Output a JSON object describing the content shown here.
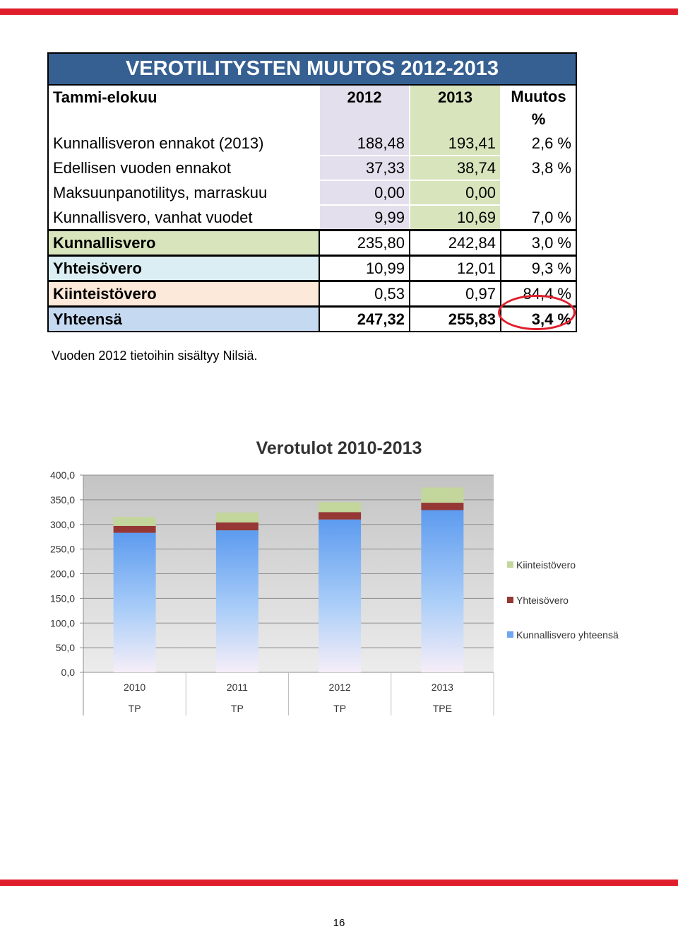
{
  "table": {
    "title": "VEROTILITYSTEN MUUTOS 2012-2013",
    "header": {
      "label": "Tammi-elokuu",
      "y2012": "2012",
      "y2013": "2013",
      "change": "Muutos %"
    },
    "detail_rows": [
      {
        "label": "Kunnallisveron ennakot (2013)",
        "y2012": "188,48",
        "y2013": "193,41",
        "change": "2,6 %"
      },
      {
        "label": "Edellisen vuoden ennakot",
        "y2012": "37,33",
        "y2013": "38,74",
        "change": "3,8 %"
      },
      {
        "label": "Maksuunpanotilitys, marraskuu",
        "y2012": "0,00",
        "y2013": "0,00",
        "change": ""
      },
      {
        "label": "Kunnallisvero, vanhat vuodet",
        "y2012": "9,99",
        "y2013": "10,69",
        "change": "7,0 %"
      }
    ],
    "summary_rows": [
      {
        "label": "Kunnallisvero",
        "y2012": "235,80",
        "y2013": "242,84",
        "change": "3,0 %"
      },
      {
        "label": "Yhteisövero",
        "y2012": "10,99",
        "y2013": "12,01",
        "change": "9,3 %"
      },
      {
        "label": "Kiinteistövero",
        "y2012": "0,53",
        "y2013": "0,97",
        "change": "84,4 %"
      },
      {
        "label": "Yhteensä",
        "y2012": "247,32",
        "y2013": "255,83",
        "change": "3,4 %"
      }
    ],
    "highlight_color": "#e01e2b"
  },
  "note": "Vuoden 2012 tietoihin sisältyy Nilsiä.",
  "chart_data": {
    "type": "bar",
    "title": "Verotulot 2010-2013",
    "stacked": true,
    "categories": [
      "2010",
      "2011",
      "2012",
      "2013"
    ],
    "category_sublabels": [
      "TP",
      "TP",
      "TP",
      "TPE"
    ],
    "ylim": [
      0,
      400
    ],
    "yticks": [
      "0,0",
      "50,0",
      "100,0",
      "150,0",
      "200,0",
      "250,0",
      "300,0",
      "350,0",
      "400,0"
    ],
    "grid": true,
    "legend_position": "right",
    "series": [
      {
        "name": "Kunnallisvero yhteensä",
        "values": [
          283,
          288,
          310,
          329
        ],
        "color": "#6ea6f0"
      },
      {
        "name": "Yhteisövero",
        "values": [
          14,
          16,
          15,
          15
        ],
        "color": "#953735"
      },
      {
        "name": "Kiinteistövero",
        "values": [
          18,
          20,
          20,
          31
        ],
        "color": "#c3d69b"
      }
    ]
  },
  "page_number": "16"
}
